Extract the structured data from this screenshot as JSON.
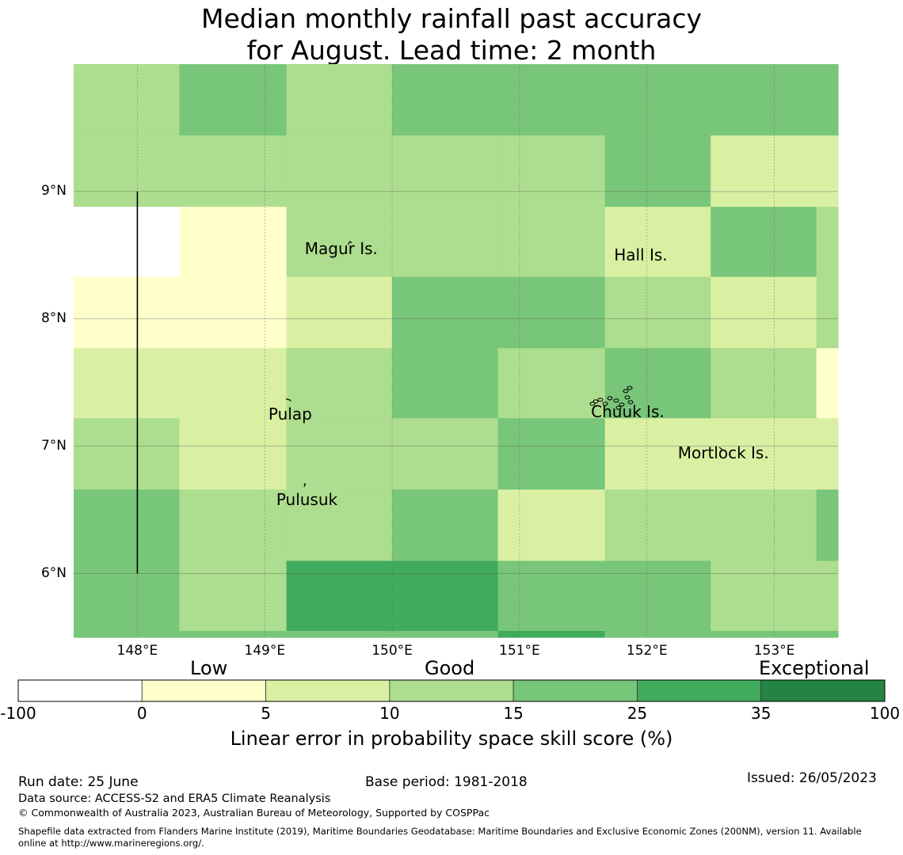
{
  "title_line1": "Median monthly rainfall past accuracy",
  "title_line2": "for August. Lead time: 2 month",
  "map": {
    "lon_range": [
      147.5,
      153.5
    ],
    "lat_range": [
      5.5,
      10.0
    ],
    "x_ticks": [
      {
        "value": 148,
        "label": "148°E"
      },
      {
        "value": 149,
        "label": "149°E"
      },
      {
        "value": 150,
        "label": "150°E"
      },
      {
        "value": 151,
        "label": "151°E"
      },
      {
        "value": 152,
        "label": "152°E"
      },
      {
        "value": 153,
        "label": "153°E"
      }
    ],
    "y_ticks": [
      {
        "value": 9,
        "label": "9°N"
      },
      {
        "value": 8,
        "label": "8°N"
      },
      {
        "value": 7,
        "label": "7°N"
      },
      {
        "value": 6,
        "label": "6°N"
      }
    ],
    "grid": true,
    "places": [
      {
        "name": "Magur Is.",
        "lon": 149.6,
        "lat": 8.55
      },
      {
        "name": "Hall Is.",
        "lon": 151.95,
        "lat": 8.5
      },
      {
        "name": "Pulap",
        "lon": 149.2,
        "lat": 7.25
      },
      {
        "name": "Chuuk Is.",
        "lon": 151.85,
        "lat": 7.27
      },
      {
        "name": "Mortlock Is.",
        "lon": 152.6,
        "lat": 6.95
      },
      {
        "name": "Pulusuk",
        "lon": 149.33,
        "lat": 6.58
      }
    ],
    "boundary_line": {
      "lon": 148.0,
      "lat_from": 6.0,
      "lat_to": 9.0
    },
    "cells": [
      {
        "lon": [
          147.5,
          148.33
        ],
        "lat": [
          9.44,
          10.0
        ],
        "class": 3
      },
      {
        "lon": [
          148.33,
          149.17
        ],
        "lat": [
          9.44,
          10.0
        ],
        "class": 4
      },
      {
        "lon": [
          149.17,
          150.0
        ],
        "lat": [
          9.44,
          10.0
        ],
        "class": 3
      },
      {
        "lon": [
          150.0,
          150.83
        ],
        "lat": [
          9.44,
          10.0
        ],
        "class": 4
      },
      {
        "lon": [
          150.83,
          151.67
        ],
        "lat": [
          9.44,
          10.0
        ],
        "class": 4
      },
      {
        "lon": [
          151.67,
          152.5
        ],
        "lat": [
          9.44,
          10.0
        ],
        "class": 4
      },
      {
        "lon": [
          152.5,
          153.5
        ],
        "lat": [
          9.44,
          10.0
        ],
        "class": 4
      },
      {
        "lon": [
          147.5,
          148.33
        ],
        "lat": [
          8.88,
          9.44
        ],
        "class": 3
      },
      {
        "lon": [
          148.33,
          149.17
        ],
        "lat": [
          8.88,
          9.44
        ],
        "class": 3
      },
      {
        "lon": [
          149.17,
          150.0
        ],
        "lat": [
          8.88,
          9.44
        ],
        "class": 3
      },
      {
        "lon": [
          150.0,
          150.83
        ],
        "lat": [
          8.88,
          9.44
        ],
        "class": 3
      },
      {
        "lon": [
          150.83,
          151.67
        ],
        "lat": [
          8.88,
          9.44
        ],
        "class": 3
      },
      {
        "lon": [
          151.67,
          152.5
        ],
        "lat": [
          8.88,
          9.44
        ],
        "class": 4
      },
      {
        "lon": [
          152.5,
          153.5
        ],
        "lat": [
          8.88,
          9.44
        ],
        "class": 2
      },
      {
        "lon": [
          147.5,
          148.33
        ],
        "lat": [
          8.33,
          8.88
        ],
        "class": 0
      },
      {
        "lon": [
          148.33,
          149.17
        ],
        "lat": [
          8.33,
          8.88
        ],
        "class": 1
      },
      {
        "lon": [
          149.17,
          150.0
        ],
        "lat": [
          8.33,
          8.88
        ],
        "class": 3
      },
      {
        "lon": [
          150.0,
          150.83
        ],
        "lat": [
          8.33,
          8.88
        ],
        "class": 3
      },
      {
        "lon": [
          150.83,
          151.67
        ],
        "lat": [
          8.33,
          8.88
        ],
        "class": 3
      },
      {
        "lon": [
          151.67,
          152.5
        ],
        "lat": [
          8.33,
          8.88
        ],
        "class": 2
      },
      {
        "lon": [
          152.5,
          153.33
        ],
        "lat": [
          8.33,
          8.88
        ],
        "class": 4
      },
      {
        "lon": [
          153.33,
          153.5
        ],
        "lat": [
          8.33,
          8.88
        ],
        "class": 3
      },
      {
        "lon": [
          147.5,
          148.33
        ],
        "lat": [
          7.77,
          8.33
        ],
        "class": 1
      },
      {
        "lon": [
          148.33,
          149.17
        ],
        "lat": [
          7.77,
          8.33
        ],
        "class": 1
      },
      {
        "lon": [
          149.17,
          150.0
        ],
        "lat": [
          7.77,
          8.33
        ],
        "class": 2
      },
      {
        "lon": [
          150.0,
          150.83
        ],
        "lat": [
          7.77,
          8.33
        ],
        "class": 4
      },
      {
        "lon": [
          150.83,
          151.67
        ],
        "lat": [
          7.77,
          8.33
        ],
        "class": 4
      },
      {
        "lon": [
          151.67,
          152.5
        ],
        "lat": [
          7.77,
          8.33
        ],
        "class": 3
      },
      {
        "lon": [
          152.5,
          153.33
        ],
        "lat": [
          7.77,
          8.33
        ],
        "class": 2
      },
      {
        "lon": [
          153.33,
          153.5
        ],
        "lat": [
          7.77,
          8.33
        ],
        "class": 3
      },
      {
        "lon": [
          147.5,
          148.33
        ],
        "lat": [
          7.22,
          7.77
        ],
        "class": 2
      },
      {
        "lon": [
          148.33,
          149.17
        ],
        "lat": [
          7.22,
          7.77
        ],
        "class": 2
      },
      {
        "lon": [
          149.17,
          150.0
        ],
        "lat": [
          7.22,
          7.77
        ],
        "class": 3
      },
      {
        "lon": [
          150.0,
          150.83
        ],
        "lat": [
          7.22,
          7.77
        ],
        "class": 4
      },
      {
        "lon": [
          150.83,
          151.67
        ],
        "lat": [
          7.22,
          7.77
        ],
        "class": 3
      },
      {
        "lon": [
          151.67,
          152.5
        ],
        "lat": [
          7.22,
          7.77
        ],
        "class": 4
      },
      {
        "lon": [
          152.5,
          153.33
        ],
        "lat": [
          7.22,
          7.77
        ],
        "class": 3
      },
      {
        "lon": [
          153.33,
          153.5
        ],
        "lat": [
          7.22,
          7.77
        ],
        "class": 1
      },
      {
        "lon": [
          147.5,
          148.33
        ],
        "lat": [
          6.66,
          7.22
        ],
        "class": 3
      },
      {
        "lon": [
          148.33,
          149.17
        ],
        "lat": [
          6.66,
          7.22
        ],
        "class": 2
      },
      {
        "lon": [
          149.17,
          150.0
        ],
        "lat": [
          6.66,
          7.22
        ],
        "class": 3
      },
      {
        "lon": [
          150.0,
          150.83
        ],
        "lat": [
          6.66,
          7.22
        ],
        "class": 3
      },
      {
        "lon": [
          150.83,
          151.67
        ],
        "lat": [
          6.66,
          7.22
        ],
        "class": 4
      },
      {
        "lon": [
          151.67,
          152.5
        ],
        "lat": [
          6.66,
          7.22
        ],
        "class": 2
      },
      {
        "lon": [
          152.5,
          153.5
        ],
        "lat": [
          6.66,
          7.22
        ],
        "class": 2
      },
      {
        "lon": [
          147.5,
          148.33
        ],
        "lat": [
          6.1,
          6.66
        ],
        "class": 4
      },
      {
        "lon": [
          148.33,
          149.17
        ],
        "lat": [
          6.1,
          6.66
        ],
        "class": 3
      },
      {
        "lon": [
          149.17,
          150.0
        ],
        "lat": [
          6.1,
          6.66
        ],
        "class": 3
      },
      {
        "lon": [
          150.0,
          150.83
        ],
        "lat": [
          6.1,
          6.66
        ],
        "class": 4
      },
      {
        "lon": [
          150.83,
          151.67
        ],
        "lat": [
          6.1,
          6.66
        ],
        "class": 2
      },
      {
        "lon": [
          151.67,
          152.5
        ],
        "lat": [
          6.1,
          6.66
        ],
        "class": 3
      },
      {
        "lon": [
          152.5,
          153.33
        ],
        "lat": [
          6.1,
          6.66
        ],
        "class": 3
      },
      {
        "lon": [
          153.33,
          153.5
        ],
        "lat": [
          6.1,
          6.66
        ],
        "class": 4
      },
      {
        "lon": [
          147.5,
          148.33
        ],
        "lat": [
          5.55,
          6.1
        ],
        "class": 4
      },
      {
        "lon": [
          148.33,
          149.17
        ],
        "lat": [
          5.55,
          6.1
        ],
        "class": 3
      },
      {
        "lon": [
          149.17,
          150.0
        ],
        "lat": [
          5.55,
          6.1
        ],
        "class": 5
      },
      {
        "lon": [
          150.0,
          150.83
        ],
        "lat": [
          5.55,
          6.1
        ],
        "class": 5
      },
      {
        "lon": [
          150.83,
          151.67
        ],
        "lat": [
          5.55,
          6.1
        ],
        "class": 4
      },
      {
        "lon": [
          151.67,
          152.5
        ],
        "lat": [
          5.55,
          6.1
        ],
        "class": 4
      },
      {
        "lon": [
          152.5,
          153.5
        ],
        "lat": [
          5.55,
          6.1
        ],
        "class": 3
      },
      {
        "lon": [
          147.5,
          150.83
        ],
        "lat": [
          5.5,
          5.55
        ],
        "class": 4
      },
      {
        "lon": [
          150.83,
          151.67
        ],
        "lat": [
          5.5,
          5.55
        ],
        "class": 5
      },
      {
        "lon": [
          151.67,
          153.5
        ],
        "lat": [
          5.5,
          5.55
        ],
        "class": 4
      }
    ]
  },
  "colorbar": {
    "colors": [
      "#ffffff",
      "#ffffcc",
      "#d9f0a3",
      "#addd8e",
      "#78c679",
      "#41ab5d",
      "#238443"
    ],
    "ticks": [
      "-100",
      "0",
      "5",
      "10",
      "15",
      "25",
      "35",
      "100"
    ],
    "categories": [
      "Low",
      "Good",
      "Exceptional"
    ],
    "label": "Linear error in probability space skill score (%)"
  },
  "footer": {
    "run_date": "Run date: 25 June",
    "base_period": "Base period: 1981-2018",
    "issued": "Issued: 26/05/2023",
    "data_source": "Data source: ACCESS-S2 and ERA5 Climate Reanalysis",
    "copyright": "© Commonwealth of Australia 2023, Australian Bureau of Meteorology, Supported by COSPPac",
    "shapefile_line1": "Shapefile data extracted from Flanders Marine Institute (2019), Maritime Boundaries Geodatabase: Maritime Boundaries and Exclusive Economic Zones (200NM), version 11. Available",
    "shapefile_line2": "online at http://www.marineregions.org/."
  }
}
